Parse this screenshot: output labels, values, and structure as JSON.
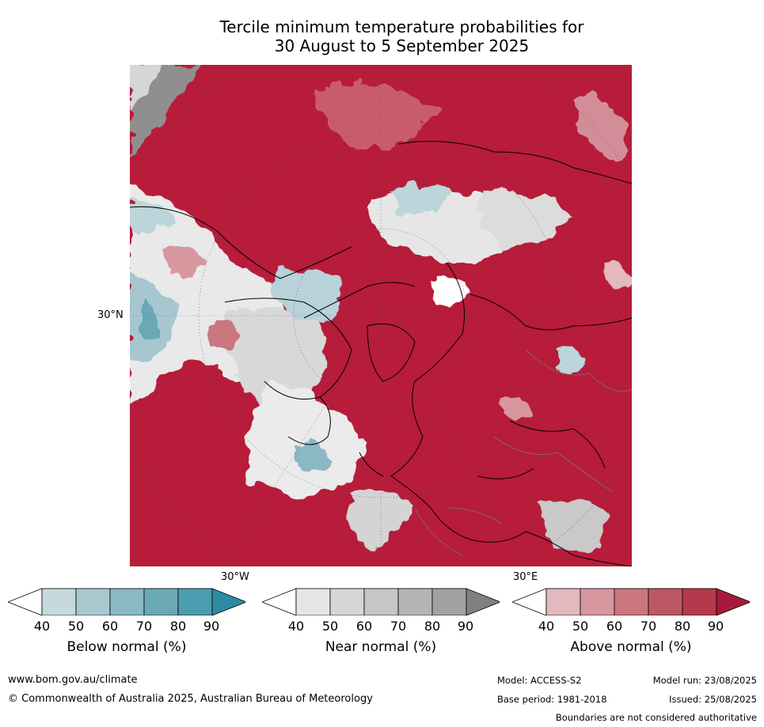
{
  "title": {
    "line1": "Tercile minimum temperature probabilities for",
    "line2": "30 August to 5 September 2025"
  },
  "map": {
    "lat_label": "30°N",
    "lon_labels": [
      "30°W",
      "30°E"
    ],
    "colors": {
      "above_dominant": "#b71c3a",
      "ocean_arctic": "#b8223d"
    }
  },
  "legends": [
    {
      "key": "below",
      "label": "Below normal (%)",
      "ticks": [
        "40",
        "50",
        "60",
        "70",
        "80",
        "90"
      ],
      "colors": [
        "#ffffff",
        "#c5d9df",
        "#a8c8d0",
        "#8ab8c4",
        "#6aa8b6",
        "#4a9eaf",
        "#2e8aa0"
      ]
    },
    {
      "key": "near",
      "label": "Near normal (%)",
      "ticks": [
        "40",
        "50",
        "60",
        "70",
        "80",
        "90"
      ],
      "colors": [
        "#ffffff",
        "#e6e6e6",
        "#d6d6d6",
        "#c6c6c6",
        "#b4b4b4",
        "#a2a2a2",
        "#808080"
      ]
    },
    {
      "key": "above",
      "label": "Above normal (%)",
      "ticks": [
        "40",
        "50",
        "60",
        "70",
        "80",
        "90"
      ],
      "colors": [
        "#ffffff",
        "#e3b8bf",
        "#d7979f",
        "#ca7780",
        "#bd5766",
        "#b6384c",
        "#a8183a"
      ]
    }
  ],
  "footer": {
    "website": "www.bom.gov.au/climate",
    "copyright": "© Commonwealth of Australia 2025, Australian Bureau of Meteorology",
    "model": "Model: ACCESS-S2",
    "base_period": "Base period: 1981-2018",
    "model_run": "Model run: 23/08/2025",
    "issued": "Issued: 25/08/2025",
    "disclaimer": "Boundaries are not considered authoritative"
  }
}
